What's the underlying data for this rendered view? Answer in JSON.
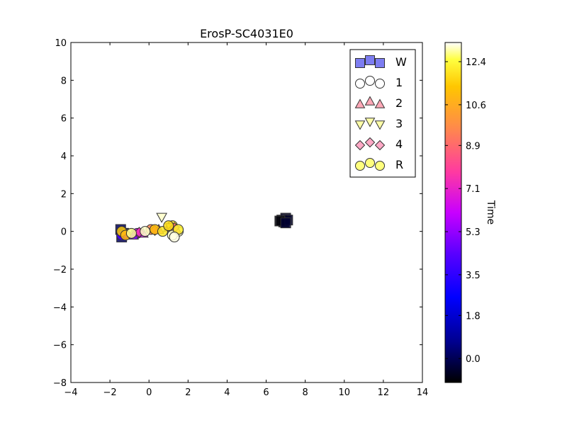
{
  "chart_data": {
    "type": "scatter",
    "title": "ErosP-SC4031E0",
    "xlabel": "",
    "ylabel": "",
    "xlim": [
      -4,
      14
    ],
    "ylim": [
      -8,
      10
    ],
    "xticks": [
      -4,
      -2,
      0,
      2,
      4,
      6,
      8,
      10,
      12,
      14
    ],
    "yticks": [
      -8,
      -6,
      -4,
      -2,
      0,
      2,
      4,
      6,
      8,
      10
    ],
    "grid": false,
    "legend": {
      "location": "top-right",
      "entries": [
        {
          "label": "W",
          "marker": "square",
          "color": "#6666ee"
        },
        {
          "label": "1",
          "marker": "circle",
          "color": "#ffffff"
        },
        {
          "label": "2",
          "marker": "triangle-up",
          "color": "#ff99aa"
        },
        {
          "label": "3",
          "marker": "triangle-down",
          "color": "#ffff99"
        },
        {
          "label": "4",
          "marker": "diamond",
          "color": "#ff99bb"
        },
        {
          "label": "R",
          "marker": "circle",
          "color": "#ffff66"
        }
      ]
    },
    "colorbar": {
      "label": "Time",
      "range": [
        -1.0,
        13.2
      ],
      "ticks": [
        "0.0",
        "1.8",
        "3.5",
        "5.3",
        "7.1",
        "8.9",
        "10.6",
        "12.4"
      ],
      "tick_values": [
        0.0,
        1.8,
        3.5,
        5.3,
        7.1,
        8.9,
        10.6,
        12.4
      ],
      "colormap": "gnuplot2"
    },
    "series": [
      {
        "name": "W",
        "marker": "square",
        "points": [
          {
            "x": 6.8,
            "y": 0.6,
            "t": -0.8
          },
          {
            "x": 7.0,
            "y": 0.7,
            "t": -0.6
          },
          {
            "x": 6.9,
            "y": 0.5,
            "t": -0.7
          },
          {
            "x": 7.1,
            "y": 0.6,
            "t": -0.5
          },
          {
            "x": 6.7,
            "y": 0.55,
            "t": -0.9
          },
          {
            "x": 7.0,
            "y": 0.45,
            "t": -0.4
          },
          {
            "x": -1.4,
            "y": -0.3,
            "t": 0.2
          },
          {
            "x": -1.3,
            "y": -0.1,
            "t": 0.4
          },
          {
            "x": -1.45,
            "y": 0.1,
            "t": 0.1
          }
        ]
      },
      {
        "name": "1",
        "marker": "circle",
        "points": [
          {
            "x": -1.4,
            "y": -0.2,
            "t": 4.0
          },
          {
            "x": -0.6,
            "y": -0.1,
            "t": 6.0
          },
          {
            "x": 0.1,
            "y": 0.1,
            "t": 9.5
          },
          {
            "x": 1.2,
            "y": 0.3,
            "t": 12.0
          },
          {
            "x": 1.5,
            "y": 0.0,
            "t": 13.0
          }
        ]
      },
      {
        "name": "2",
        "marker": "triangle-up",
        "points": [
          {
            "x": -0.8,
            "y": -0.2,
            "t": 5.0
          },
          {
            "x": -0.3,
            "y": -0.1,
            "t": 6.5
          },
          {
            "x": 0.5,
            "y": 0.1,
            "t": 9.0
          },
          {
            "x": 1.0,
            "y": 0.2,
            "t": 10.0
          },
          {
            "x": 1.4,
            "y": 0.1,
            "t": 9.2
          }
        ]
      },
      {
        "name": "3",
        "marker": "triangle-down",
        "points": [
          {
            "x": 0.65,
            "y": 0.75,
            "t": 13.0
          },
          {
            "x": 1.1,
            "y": 0.2,
            "t": 12.5
          },
          {
            "x": -1.1,
            "y": -0.1,
            "t": 12.8
          }
        ]
      },
      {
        "name": "4",
        "marker": "diamond",
        "points": [
          {
            "x": -1.2,
            "y": -0.15,
            "t": 6.0
          },
          {
            "x": -0.5,
            "y": -0.05,
            "t": 7.5
          },
          {
            "x": 0.3,
            "y": 0.05,
            "t": 8.5
          },
          {
            "x": 1.3,
            "y": 0.2,
            "t": 9.0
          }
        ]
      },
      {
        "name": "R",
        "marker": "circle",
        "points": [
          {
            "x": -1.4,
            "y": 0.0,
            "t": 11.5
          },
          {
            "x": -1.2,
            "y": -0.2,
            "t": 11.0
          },
          {
            "x": -0.9,
            "y": -0.1,
            "t": 12.8
          },
          {
            "x": -0.2,
            "y": 0.0,
            "t": 13.0
          },
          {
            "x": 0.3,
            "y": 0.1,
            "t": 11.2
          },
          {
            "x": 0.7,
            "y": 0.0,
            "t": 12.0
          },
          {
            "x": 1.0,
            "y": 0.3,
            "t": 11.8
          },
          {
            "x": 1.2,
            "y": -0.2,
            "t": 13.0
          },
          {
            "x": 1.5,
            "y": 0.1,
            "t": 12.2
          },
          {
            "x": 1.3,
            "y": -0.3,
            "t": 13.1
          }
        ]
      }
    ]
  }
}
